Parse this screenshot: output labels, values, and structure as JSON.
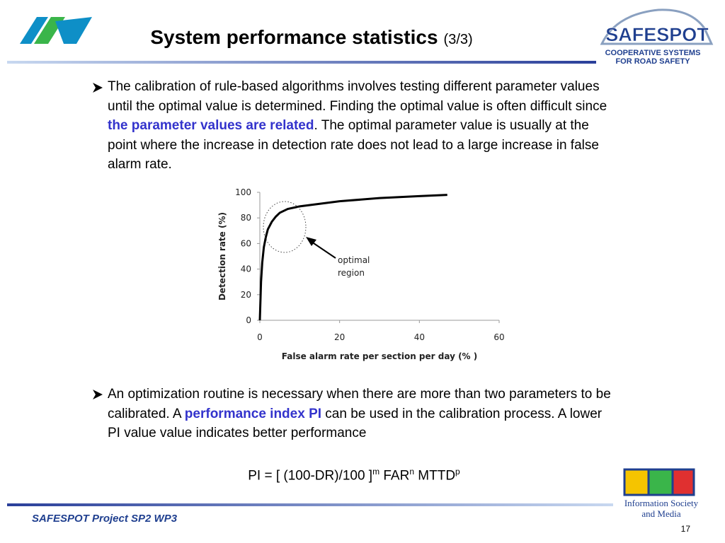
{
  "header": {
    "title": "System performance statistics",
    "title_suffix": "(3/3)",
    "logo_right": "SAFESPOT",
    "logo_right_sub": [
      "COOPERATIVE SYSTEMS",
      "FOR ROAD SAFETY"
    ]
  },
  "bullets": [
    {
      "parts": [
        {
          "text": "The calibration of rule-based algorithms involves testing different parameter values until the optimal value is determined. Finding the optimal value is often difficult since "
        },
        {
          "text": "the parameter values are related",
          "highlight": true
        },
        {
          "text": ". The optimal parameter value is usually at the point where the increase in detection rate does not lead to a large increase in false alarm rate."
        }
      ]
    },
    {
      "parts": [
        {
          "text": "An optimization routine is necessary when there are more than two parameters to be calibrated. A "
        },
        {
          "text": "performance index PI",
          "highlight": true
        },
        {
          "text": " can be used in the calibration process. A lower PI value value indicates better performance"
        }
      ]
    }
  ],
  "formula": [
    {
      "text": "PI = [ (100-DR)/100 ]"
    },
    {
      "text": "m",
      "sup": true
    },
    {
      "text": "  FAR"
    },
    {
      "text": "n",
      "sup": true
    },
    {
      "text": "  MTTD"
    },
    {
      "text": "p",
      "sup": true
    }
  ],
  "footer": {
    "project": "SAFESPOT Project  SP2  WP3",
    "page": "17",
    "logo": [
      "Information Society",
      "and Media"
    ]
  },
  "chart_data": {
    "type": "line",
    "color": "#000000",
    "x": [
      0,
      0.3,
      0.6,
      1,
      1.5,
      2,
      3,
      4,
      5,
      7,
      10,
      15,
      20,
      30,
      40,
      47
    ],
    "values": [
      0,
      30,
      45,
      57,
      65,
      71,
      77,
      81,
      84,
      87,
      89,
      91,
      93,
      95.5,
      97,
      98
    ],
    "xlim": [
      0,
      60
    ],
    "ylim": [
      0,
      100
    ],
    "xticks": [
      0,
      20,
      40,
      60
    ],
    "yticks": [
      0,
      20,
      40,
      60,
      80,
      100
    ],
    "xlabel": "False alarm rate per section per day (% )",
    "ylabel": "Detection rate (%)",
    "annotation": [
      "optimal",
      "region"
    ]
  }
}
